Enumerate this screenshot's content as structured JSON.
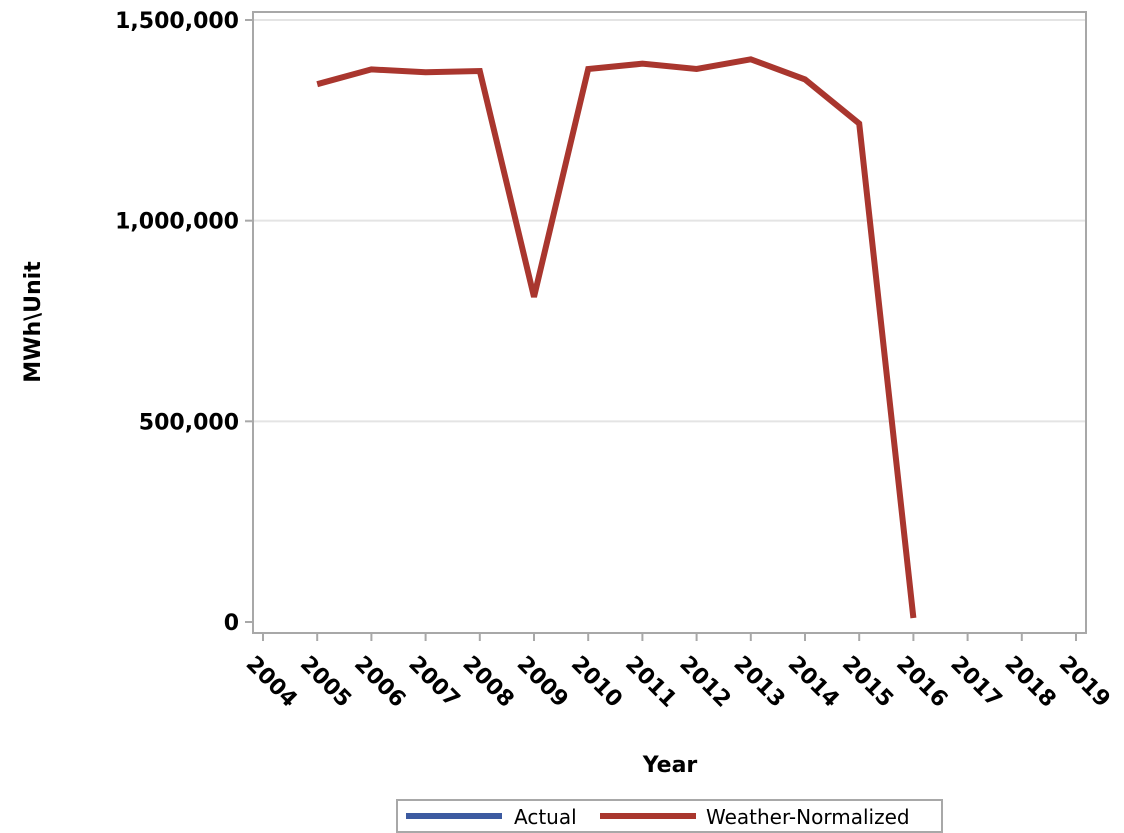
{
  "chart_data": {
    "type": "line",
    "title": "",
    "xlabel": "Year",
    "ylabel": "MWh\\Unit",
    "x_ticks": [
      "2004",
      "2005",
      "2006",
      "2007",
      "2008",
      "2009",
      "2010",
      "2011",
      "2012",
      "2013",
      "2014",
      "2015",
      "2016",
      "2017",
      "2018",
      "2019"
    ],
    "y_ticks": [
      "0",
      "500,000",
      "1,000,000",
      "1,500,000"
    ],
    "y_tick_values": [
      0,
      500000,
      1000000,
      1500000
    ],
    "xlim": [
      2004,
      2019
    ],
    "ylim": [
      0,
      1500000
    ],
    "grid": "horizontal",
    "legend_position": "bottom",
    "series": [
      {
        "name": "Actual",
        "color": "#3c5aa0",
        "x": [],
        "values": []
      },
      {
        "name": "Weather-Normalized",
        "color": "#a9362e",
        "x": [
          2005,
          2006,
          2007,
          2008,
          2009,
          2010,
          2011,
          2012,
          2013,
          2014,
          2015,
          2016
        ],
        "values": [
          1340000,
          1377000,
          1370000,
          1373000,
          810000,
          1378000,
          1391000,
          1378000,
          1402000,
          1352000,
          1242000,
          10000
        ]
      }
    ]
  }
}
